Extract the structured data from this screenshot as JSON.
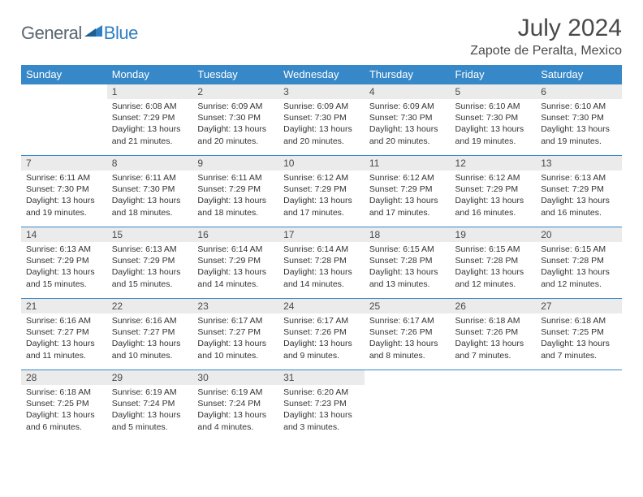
{
  "logo": {
    "general": "General",
    "blue": "Blue"
  },
  "title": "July 2024",
  "location": "Zapote de Peralta, Mexico",
  "colors": {
    "header_bg": "#3788c8",
    "header_text": "#ffffff",
    "daynum_bg": "#ebebeb",
    "text": "#4a4a4a",
    "logo_gray": "#5a6570",
    "logo_blue": "#2f7fc2"
  },
  "weekdays": [
    "Sunday",
    "Monday",
    "Tuesday",
    "Wednesday",
    "Thursday",
    "Friday",
    "Saturday"
  ],
  "start_offset": 1,
  "days": [
    {
      "n": 1,
      "sunrise": "6:08 AM",
      "sunset": "7:29 PM",
      "daylight": "13 hours and 21 minutes."
    },
    {
      "n": 2,
      "sunrise": "6:09 AM",
      "sunset": "7:30 PM",
      "daylight": "13 hours and 20 minutes."
    },
    {
      "n": 3,
      "sunrise": "6:09 AM",
      "sunset": "7:30 PM",
      "daylight": "13 hours and 20 minutes."
    },
    {
      "n": 4,
      "sunrise": "6:09 AM",
      "sunset": "7:30 PM",
      "daylight": "13 hours and 20 minutes."
    },
    {
      "n": 5,
      "sunrise": "6:10 AM",
      "sunset": "7:30 PM",
      "daylight": "13 hours and 19 minutes."
    },
    {
      "n": 6,
      "sunrise": "6:10 AM",
      "sunset": "7:30 PM",
      "daylight": "13 hours and 19 minutes."
    },
    {
      "n": 7,
      "sunrise": "6:11 AM",
      "sunset": "7:30 PM",
      "daylight": "13 hours and 19 minutes."
    },
    {
      "n": 8,
      "sunrise": "6:11 AM",
      "sunset": "7:30 PM",
      "daylight": "13 hours and 18 minutes."
    },
    {
      "n": 9,
      "sunrise": "6:11 AM",
      "sunset": "7:29 PM",
      "daylight": "13 hours and 18 minutes."
    },
    {
      "n": 10,
      "sunrise": "6:12 AM",
      "sunset": "7:29 PM",
      "daylight": "13 hours and 17 minutes."
    },
    {
      "n": 11,
      "sunrise": "6:12 AM",
      "sunset": "7:29 PM",
      "daylight": "13 hours and 17 minutes."
    },
    {
      "n": 12,
      "sunrise": "6:12 AM",
      "sunset": "7:29 PM",
      "daylight": "13 hours and 16 minutes."
    },
    {
      "n": 13,
      "sunrise": "6:13 AM",
      "sunset": "7:29 PM",
      "daylight": "13 hours and 16 minutes."
    },
    {
      "n": 14,
      "sunrise": "6:13 AM",
      "sunset": "7:29 PM",
      "daylight": "13 hours and 15 minutes."
    },
    {
      "n": 15,
      "sunrise": "6:13 AM",
      "sunset": "7:29 PM",
      "daylight": "13 hours and 15 minutes."
    },
    {
      "n": 16,
      "sunrise": "6:14 AM",
      "sunset": "7:29 PM",
      "daylight": "13 hours and 14 minutes."
    },
    {
      "n": 17,
      "sunrise": "6:14 AM",
      "sunset": "7:28 PM",
      "daylight": "13 hours and 14 minutes."
    },
    {
      "n": 18,
      "sunrise": "6:15 AM",
      "sunset": "7:28 PM",
      "daylight": "13 hours and 13 minutes."
    },
    {
      "n": 19,
      "sunrise": "6:15 AM",
      "sunset": "7:28 PM",
      "daylight": "13 hours and 12 minutes."
    },
    {
      "n": 20,
      "sunrise": "6:15 AM",
      "sunset": "7:28 PM",
      "daylight": "13 hours and 12 minutes."
    },
    {
      "n": 21,
      "sunrise": "6:16 AM",
      "sunset": "7:27 PM",
      "daylight": "13 hours and 11 minutes."
    },
    {
      "n": 22,
      "sunrise": "6:16 AM",
      "sunset": "7:27 PM",
      "daylight": "13 hours and 10 minutes."
    },
    {
      "n": 23,
      "sunrise": "6:17 AM",
      "sunset": "7:27 PM",
      "daylight": "13 hours and 10 minutes."
    },
    {
      "n": 24,
      "sunrise": "6:17 AM",
      "sunset": "7:26 PM",
      "daylight": "13 hours and 9 minutes."
    },
    {
      "n": 25,
      "sunrise": "6:17 AM",
      "sunset": "7:26 PM",
      "daylight": "13 hours and 8 minutes."
    },
    {
      "n": 26,
      "sunrise": "6:18 AM",
      "sunset": "7:26 PM",
      "daylight": "13 hours and 7 minutes."
    },
    {
      "n": 27,
      "sunrise": "6:18 AM",
      "sunset": "7:25 PM",
      "daylight": "13 hours and 7 minutes."
    },
    {
      "n": 28,
      "sunrise": "6:18 AM",
      "sunset": "7:25 PM",
      "daylight": "13 hours and 6 minutes."
    },
    {
      "n": 29,
      "sunrise": "6:19 AM",
      "sunset": "7:24 PM",
      "daylight": "13 hours and 5 minutes."
    },
    {
      "n": 30,
      "sunrise": "6:19 AM",
      "sunset": "7:24 PM",
      "daylight": "13 hours and 4 minutes."
    },
    {
      "n": 31,
      "sunrise": "6:20 AM",
      "sunset": "7:23 PM",
      "daylight": "13 hours and 3 minutes."
    }
  ],
  "labels": {
    "sunrise": "Sunrise:",
    "sunset": "Sunset:",
    "daylight": "Daylight:"
  }
}
